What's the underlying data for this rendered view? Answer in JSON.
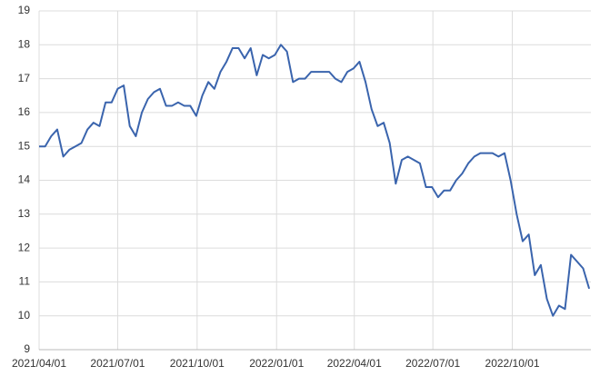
{
  "chart_data": {
    "type": "line",
    "x": [
      "2021/04/01",
      "2021/04/08",
      "2021/04/15",
      "2021/04/22",
      "2021/04/29",
      "2021/05/06",
      "2021/05/13",
      "2021/05/20",
      "2021/05/27",
      "2021/06/03",
      "2021/06/10",
      "2021/06/17",
      "2021/06/24",
      "2021/07/01",
      "2021/07/08",
      "2021/07/15",
      "2021/07/22",
      "2021/07/29",
      "2021/08/05",
      "2021/08/12",
      "2021/08/19",
      "2021/08/26",
      "2021/09/02",
      "2021/09/09",
      "2021/09/16",
      "2021/09/23",
      "2021/09/30",
      "2021/10/07",
      "2021/10/14",
      "2021/10/21",
      "2021/10/28",
      "2021/11/04",
      "2021/11/11",
      "2021/11/18",
      "2021/11/25",
      "2021/12/02",
      "2021/12/09",
      "2021/12/16",
      "2021/12/23",
      "2021/12/30",
      "2022/01/06",
      "2022/01/13",
      "2022/01/20",
      "2022/01/27",
      "2022/02/03",
      "2022/02/10",
      "2022/02/17",
      "2022/02/24",
      "2022/03/03",
      "2022/03/10",
      "2022/03/17",
      "2022/03/24",
      "2022/03/31",
      "2022/04/07",
      "2022/04/14",
      "2022/04/21",
      "2022/04/28",
      "2022/05/05",
      "2022/05/12",
      "2022/05/19",
      "2022/05/26",
      "2022/06/02",
      "2022/06/09",
      "2022/06/16",
      "2022/06/23",
      "2022/06/30",
      "2022/07/07",
      "2022/07/14",
      "2022/07/21",
      "2022/07/28",
      "2022/08/04",
      "2022/08/11",
      "2022/08/18",
      "2022/08/25",
      "2022/09/01",
      "2022/09/08",
      "2022/09/15",
      "2022/09/22",
      "2022/09/29",
      "2022/10/06",
      "2022/10/13",
      "2022/10/20",
      "2022/10/27",
      "2022/11/03",
      "2022/11/10",
      "2022/11/17",
      "2022/11/24",
      "2022/12/01",
      "2022/12/08",
      "2022/12/15",
      "2022/12/22",
      "2022/12/29"
    ],
    "series": [
      {
        "color": "#3a64ad",
        "values": [
          15.0,
          15.0,
          15.3,
          15.5,
          14.7,
          14.9,
          15.0,
          15.1,
          15.5,
          15.7,
          15.6,
          16.3,
          16.3,
          16.7,
          16.8,
          15.6,
          15.3,
          16.0,
          16.4,
          16.6,
          16.7,
          16.2,
          16.2,
          16.3,
          16.2,
          16.2,
          15.9,
          16.5,
          16.9,
          16.7,
          17.2,
          17.5,
          17.9,
          17.9,
          17.6,
          17.9,
          17.1,
          17.7,
          17.6,
          17.7,
          18.0,
          17.8,
          16.9,
          17.0,
          17.0,
          17.2,
          17.2,
          17.2,
          17.2,
          17.0,
          16.9,
          17.2,
          17.3,
          17.5,
          16.9,
          16.1,
          15.6,
          15.7,
          15.1,
          13.9,
          14.6,
          14.7,
          14.6,
          14.5,
          13.8,
          13.8,
          13.5,
          13.7,
          13.7,
          14.0,
          14.2,
          14.5,
          14.7,
          14.8,
          14.8,
          14.8,
          14.7,
          14.8,
          14.0,
          13.0,
          12.2,
          12.4,
          11.2,
          11.5,
          10.5,
          10.0,
          10.3,
          10.2,
          11.8,
          11.6,
          11.4,
          10.8
        ]
      }
    ],
    "xlim": [
      "2021/04/01",
      "2022/12/31"
    ],
    "xticks": [
      "2021/04/01",
      "2021/07/01",
      "2021/10/01",
      "2022/01/01",
      "2022/04/01",
      "2022/07/01",
      "2022/10/01"
    ],
    "ylim": [
      9,
      19
    ],
    "yticks": [
      9,
      10,
      11,
      12,
      13,
      14,
      15,
      16,
      17,
      18,
      19
    ],
    "grid": true
  }
}
